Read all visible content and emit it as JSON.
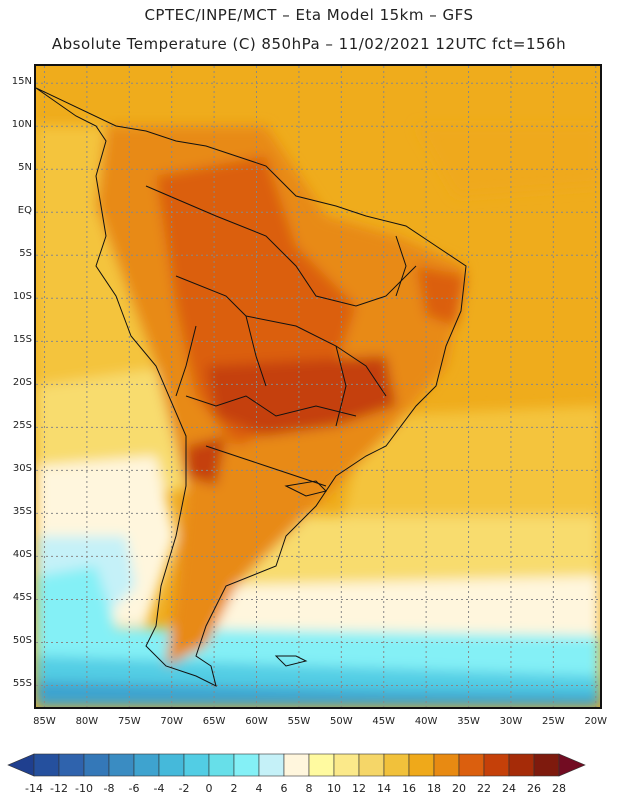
{
  "header": {
    "line1": "CPTEC/INPE/MCT –  Eta Model 15km – GFS",
    "line2": "Absolute Temperature (C) 850hPa – 11/02/2021 12UTC fct=156h"
  },
  "map": {
    "lat_labels": [
      "15N",
      "10N",
      "5N",
      "EQ",
      "5S",
      "10S",
      "15S",
      "20S",
      "25S",
      "30S",
      "35S",
      "40S",
      "45S",
      "50S",
      "55S"
    ],
    "lon_labels": [
      "85W",
      "80W",
      "75W",
      "70W",
      "65W",
      "60W",
      "55W",
      "50W",
      "45W",
      "40W",
      "35W",
      "30W",
      "25W",
      "20W"
    ],
    "extent": {
      "lon_min": -86,
      "lon_max": -19.5,
      "lat_min": -57.5,
      "lat_max": 17
    }
  },
  "legend": {
    "labels": [
      "-14",
      "-12",
      "-10",
      "-8",
      "-6",
      "-4",
      "-2",
      "0",
      "2",
      "4",
      "6",
      "8",
      "10",
      "12",
      "14",
      "16",
      "18",
      "20",
      "22",
      "24",
      "26",
      "28"
    ],
    "colors": [
      "#1f3f8f",
      "#25509e",
      "#2f63ad",
      "#3478b8",
      "#3a8cc2",
      "#3ea3cf",
      "#45b9da",
      "#52cde4",
      "#67dfe9",
      "#84f0f6",
      "#c5f1f8",
      "#fff6dd",
      "#fffaa0",
      "#fbe98a",
      "#f5d668",
      "#f1c13b",
      "#efa91a",
      "#e88a12",
      "#db5f0e",
      "#c54009",
      "#a52b08",
      "#7e1a0d",
      "#720c22"
    ]
  }
}
